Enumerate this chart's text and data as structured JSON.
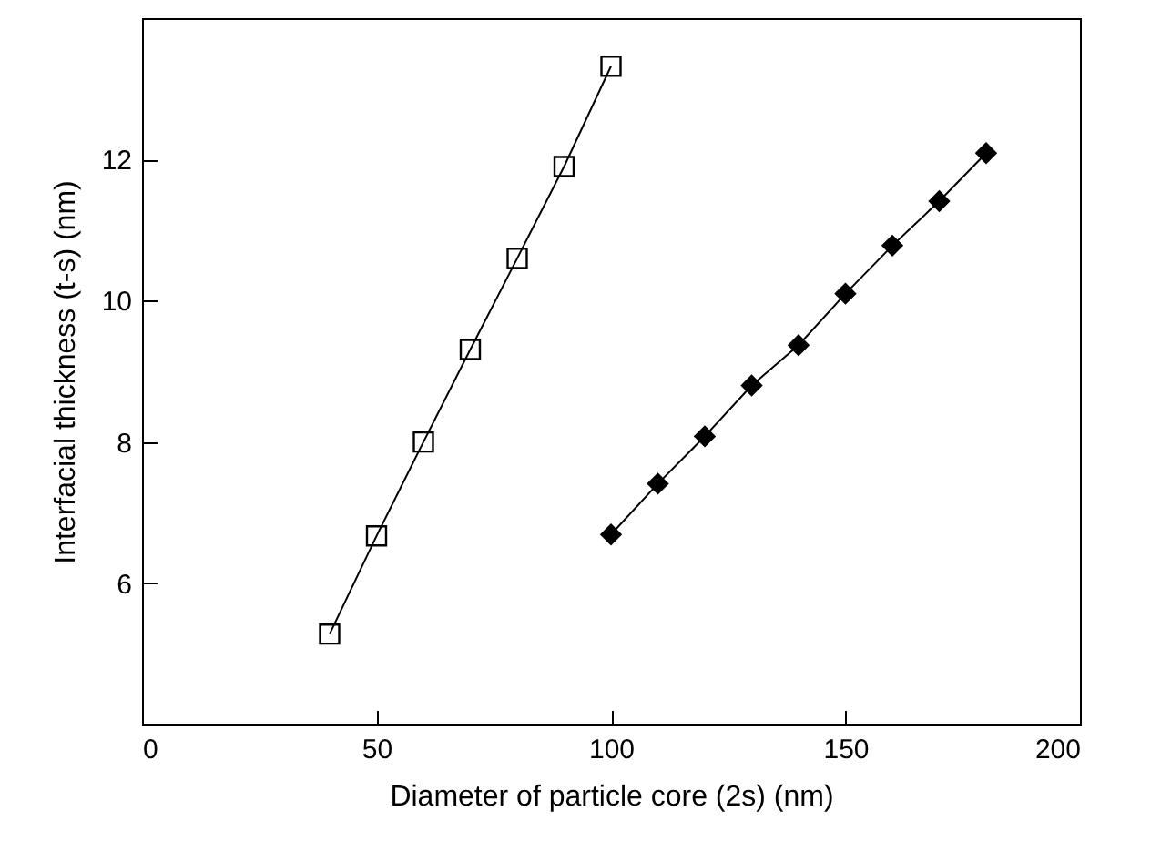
{
  "chart_data": {
    "type": "line",
    "xlabel": "Diameter of particle core (2s) (nm)",
    "ylabel": "Interfacial thickness (t-s) (nm)",
    "xlim": [
      0,
      200
    ],
    "xticks": [
      0,
      50,
      100,
      150,
      200
    ],
    "ylim": [
      4,
      14
    ],
    "yticks": [
      6,
      8,
      10,
      12
    ],
    "grid": false,
    "line_style": "solid",
    "series": [
      {
        "color": "#000000",
        "marker": "square",
        "x": [
          40,
          50,
          60,
          70,
          80,
          90,
          100
        ],
        "values": [
          5.28,
          6.67,
          8.0,
          9.31,
          10.6,
          11.9,
          13.32
        ]
      },
      {
        "color": "#000000",
        "marker": "diamond",
        "x": [
          100,
          110,
          120,
          130,
          140,
          150,
          160,
          170,
          180
        ],
        "values": [
          6.69,
          7.41,
          8.08,
          8.8,
          9.37,
          10.1,
          10.78,
          11.41,
          12.09
        ]
      }
    ]
  }
}
